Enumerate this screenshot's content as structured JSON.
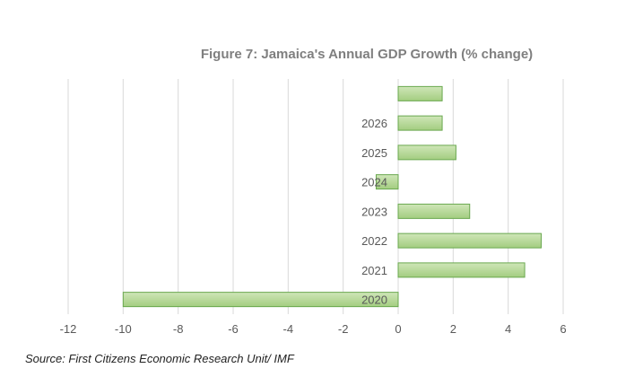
{
  "figure": {
    "title": "Figure 7: Jamaica's Annual GDP Growth (% change)",
    "source": "Source: First Citizens Economic Research Unit/ IMF"
  },
  "chart_data": {
    "type": "bar",
    "orientation": "horizontal",
    "title": "Figure 7: Jamaica's Annual GDP Growth (% change)",
    "categories": [
      "2020",
      "2021",
      "2022",
      "2023",
      "2024",
      "2025",
      "2026",
      ""
    ],
    "values": [
      -10,
      4.6,
      5.2,
      2.6,
      -0.8,
      2.1,
      1.6,
      1.6
    ],
    "xlim": [
      -12,
      6
    ],
    "xticks": [
      "-12",
      "-10",
      "-8",
      "-6",
      "-4",
      "-2",
      "0",
      "2",
      "4",
      "6"
    ],
    "grid": true,
    "legend": "none",
    "colors": {
      "bar_fill_top": "#c9e2b0",
      "bar_fill_bottom": "#9fcb7a",
      "bar_stroke": "#6aa84f",
      "grid": "#d9d9d9"
    }
  }
}
